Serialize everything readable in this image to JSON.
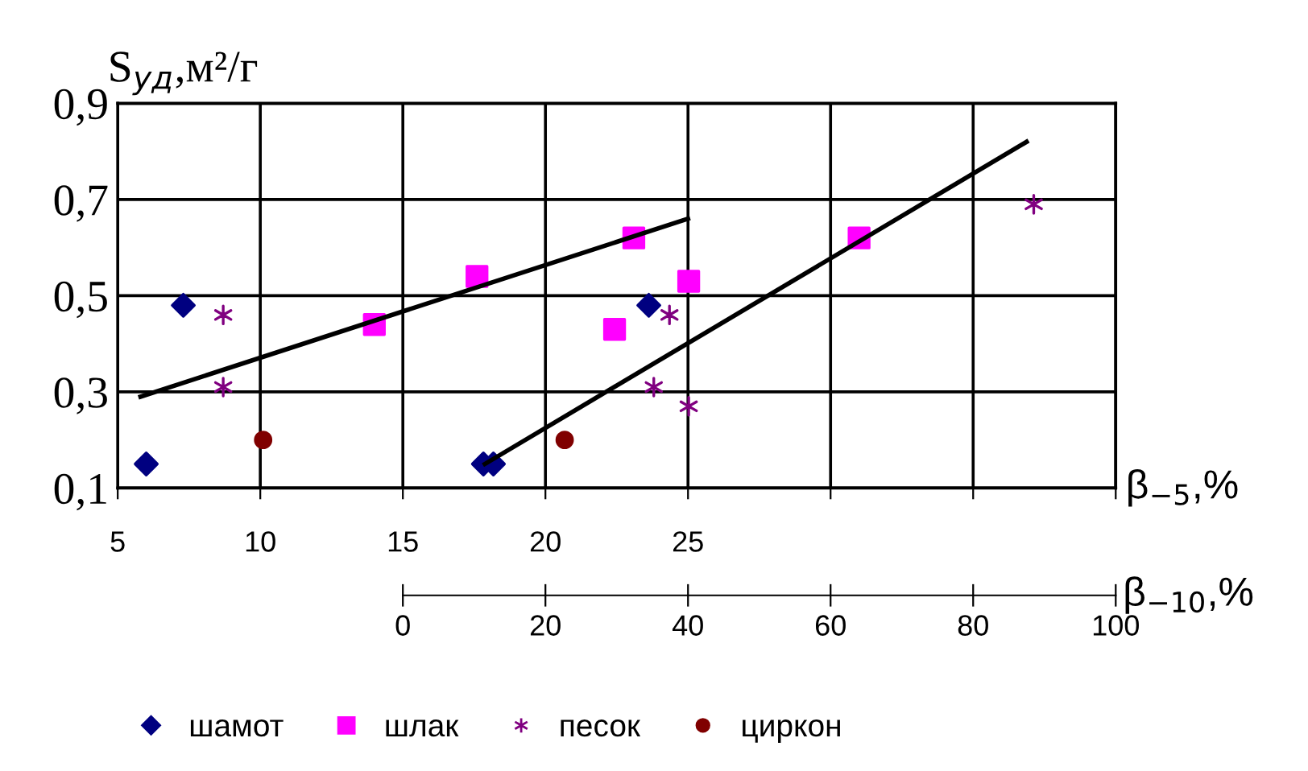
{
  "chart_data": {
    "type": "scatter",
    "ylabel": "S$_{уд}$,м²/г",
    "xlabel": "β$_{−5}$,%",
    "x2label": "β$_{−10}$,%",
    "xlim": [
      5,
      40
    ],
    "xticks": [
      5,
      10,
      15,
      20,
      25,
      {
        "value": 30,
        "label": null
      },
      {
        "value": 35,
        "label": null
      },
      {
        "value": 40,
        "label": null
      }
    ],
    "x2lim": [
      0,
      100
    ],
    "x2ticks": [
      0,
      20,
      40,
      60,
      80,
      100
    ],
    "ylim": [
      0.1,
      0.9
    ],
    "yticks": [
      {
        "value": 0.1,
        "label": "0,1"
      },
      {
        "value": 0.3,
        "label": "0,3"
      },
      {
        "value": 0.5,
        "label": "0,5"
      },
      {
        "value": 0.7,
        "label": "0,7"
      },
      {
        "value": 0.9,
        "label": "0,9"
      }
    ],
    "grid": true,
    "legend": "bottom",
    "series": [
      {
        "name": "шамот",
        "color": "#000080",
        "marker": "diamond",
        "x": [
          6.0,
          7.3
        ],
        "values": [
          0.15,
          0.48
        ]
      },
      {
        "name": "шлак",
        "color": "#ff00ff",
        "marker": "square",
        "x": [
          14.0,
          17.6,
          23.1
        ],
        "values": [
          0.44,
          0.54,
          0.62
        ]
      },
      {
        "name": "песок",
        "color": "#800080",
        "marker": "cross",
        "x": [
          8.7,
          8.7
        ],
        "values": [
          0.46,
          0.31
        ]
      },
      {
        "name": "циркон",
        "color": "#800000",
        "marker": "circle",
        "x": [
          10.1
        ],
        "values": [
          0.2
        ]
      },
      {
        "color": "#000080",
        "marker": "diamond",
        "axis": "x2",
        "x": [
          11.3,
          12.7,
          34.5
        ],
        "values": [
          0.15,
          0.15,
          0.48
        ]
      },
      {
        "color": "#ff00ff",
        "marker": "square",
        "axis": "x2",
        "x": [
          29.7,
          40.1,
          64.0
        ],
        "values": [
          0.43,
          0.53,
          0.62
        ]
      },
      {
        "color": "#800080",
        "marker": "cross",
        "axis": "x2",
        "x": [
          35.2,
          37.4,
          40.1,
          88.5
        ],
        "values": [
          0.31,
          0.46,
          0.27,
          0.69
        ]
      },
      {
        "color": "#800000",
        "marker": "circle",
        "axis": "x2",
        "x": [
          22.7
        ],
        "values": [
          0.2
        ]
      },
      {
        "type": "line",
        "color": "#000000",
        "marker": "none",
        "x": [
          5.8,
          25.0
        ],
        "values": [
          0.29,
          0.66
        ]
      },
      {
        "type": "line",
        "color": "#000000",
        "marker": "none",
        "axis": "x2",
        "x": [
          11.5,
          87.5
        ],
        "values": [
          0.15,
          0.82
        ]
      }
    ]
  }
}
